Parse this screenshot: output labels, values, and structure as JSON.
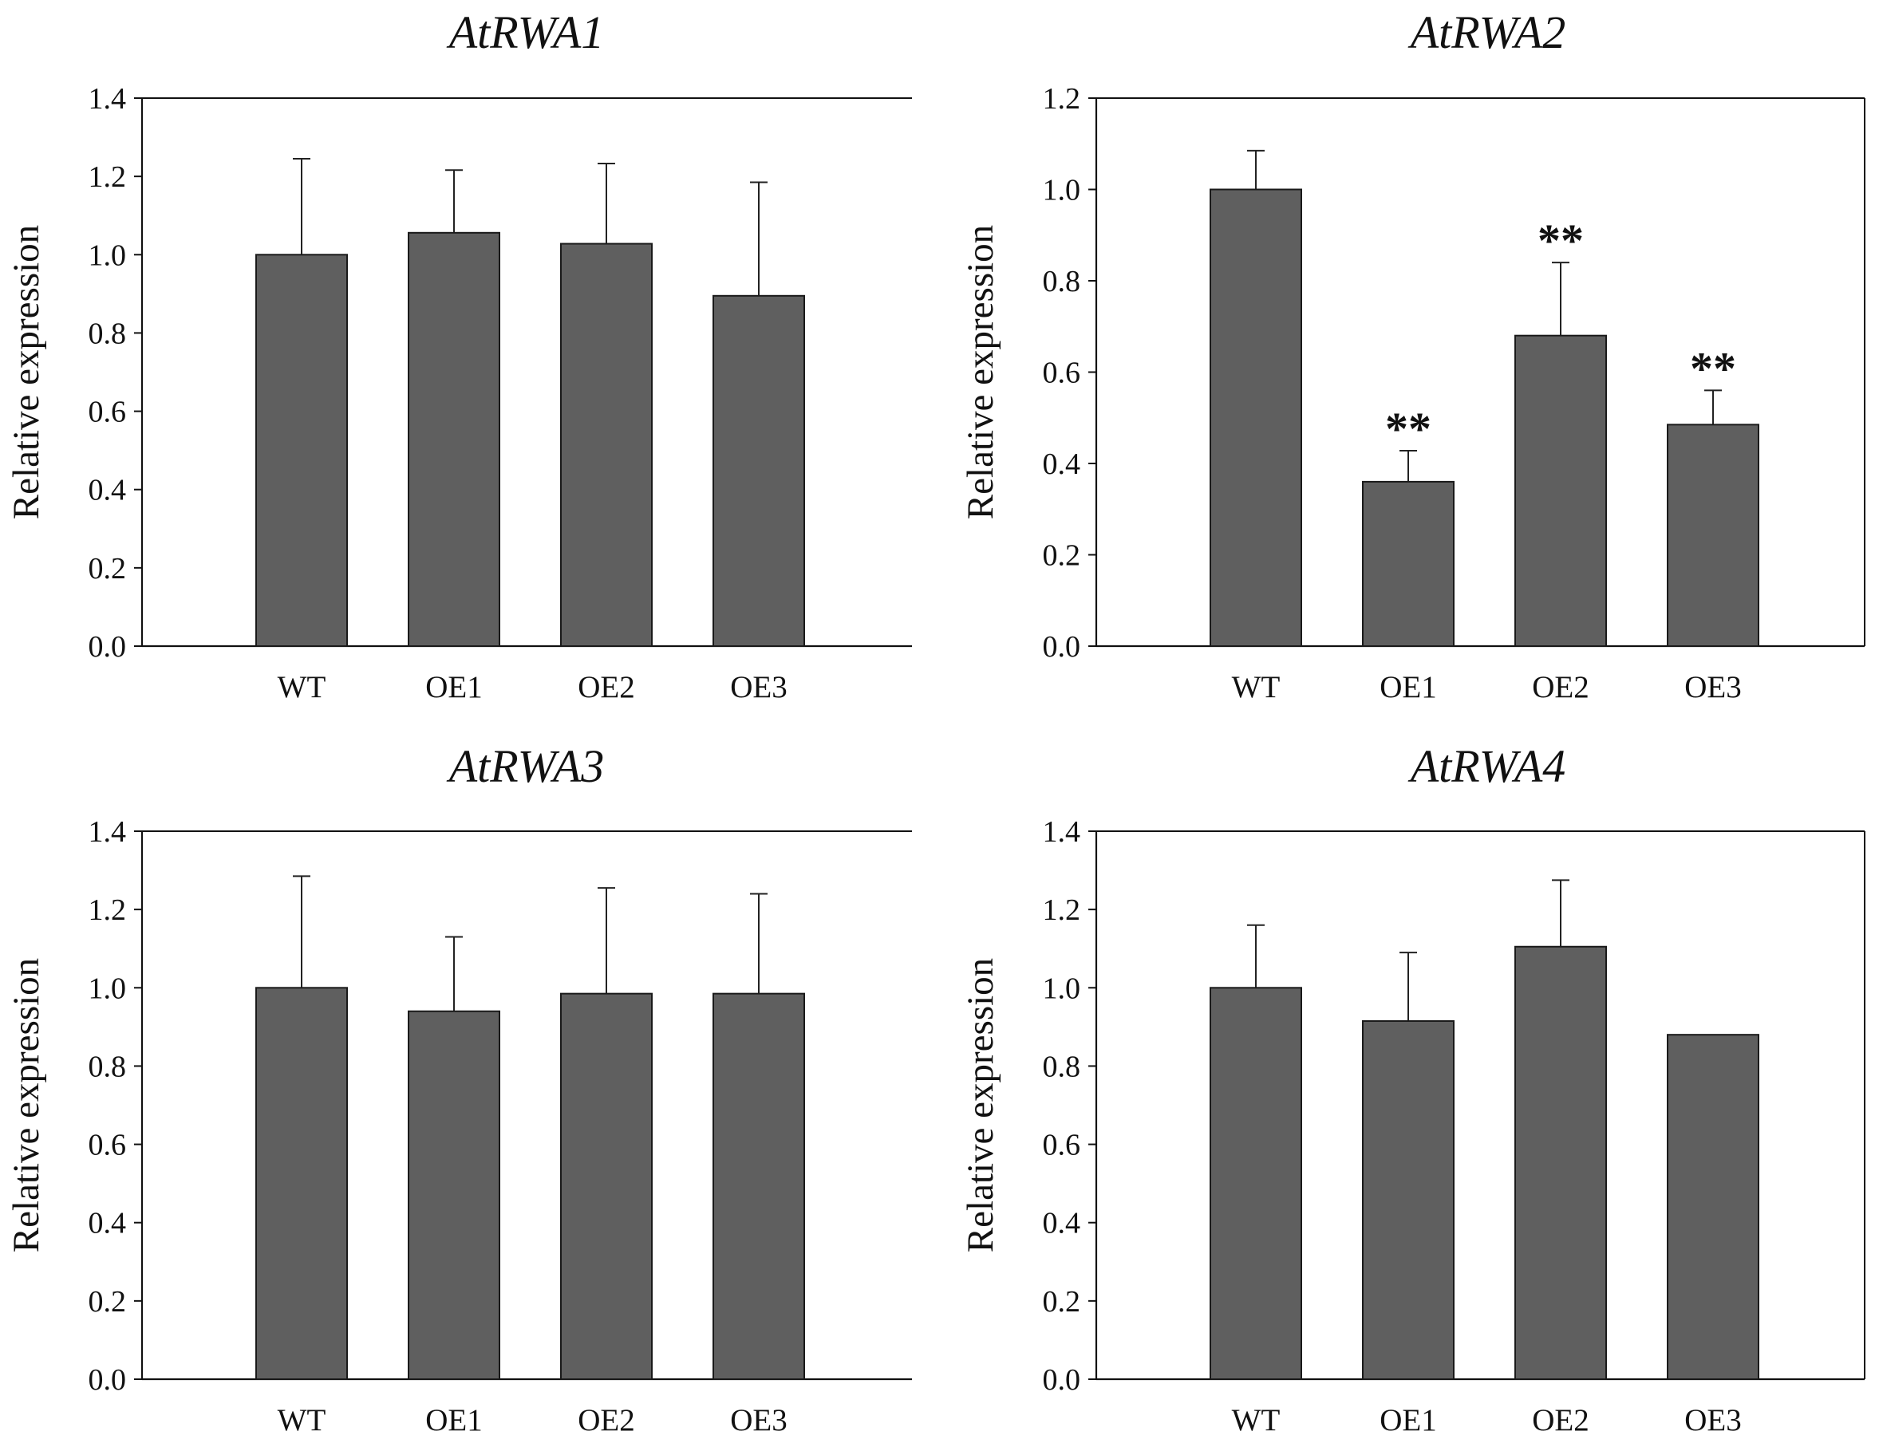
{
  "chart_data": [
    {
      "type": "bar",
      "title": "AtRWA1",
      "ylabel": "Relative expression",
      "xlabel": "",
      "categories": [
        "WT",
        "OE1",
        "OE2",
        "OE3"
      ],
      "values": [
        1.0,
        1.056,
        1.028,
        0.895
      ],
      "errors": [
        0.245,
        0.16,
        0.205,
        0.29
      ],
      "significance": [
        "",
        "",
        "",
        ""
      ],
      "ylim": [
        0,
        1.4
      ],
      "yticks": [
        "0.0",
        "0.2",
        "0.4",
        "0.6",
        "0.8",
        "1.0",
        "1.2",
        "1.4"
      ],
      "bar_color": "#5f5f5f"
    },
    {
      "type": "bar",
      "title": "AtRWA2",
      "ylabel": "Relative expression",
      "xlabel": "",
      "categories": [
        "WT",
        "OE1",
        "OE2",
        "OE3"
      ],
      "values": [
        1.0,
        0.36,
        0.68,
        0.485
      ],
      "errors": [
        0.085,
        0.068,
        0.16,
        0.075
      ],
      "significance": [
        "",
        "**",
        "**",
        "**"
      ],
      "ylim": [
        0,
        1.2
      ],
      "yticks": [
        "0.0",
        "0.2",
        "0.4",
        "0.6",
        "0.8",
        "1.0",
        "1.2"
      ],
      "bar_color": "#5f5f5f"
    },
    {
      "type": "bar",
      "title": "AtRWA3",
      "ylabel": "Relative expression",
      "xlabel": "",
      "categories": [
        "WT",
        "OE1",
        "OE2",
        "OE3"
      ],
      "values": [
        1.0,
        0.94,
        0.985,
        0.985
      ],
      "errors": [
        0.285,
        0.19,
        0.27,
        0.255
      ],
      "significance": [
        "",
        "",
        "",
        ""
      ],
      "ylim": [
        0,
        1.4
      ],
      "yticks": [
        "0.0",
        "0.2",
        "0.4",
        "0.6",
        "0.8",
        "1.0",
        "1.2",
        "1.4"
      ],
      "bar_color": "#5f5f5f"
    },
    {
      "type": "bar",
      "title": "AtRWA4",
      "ylabel": "Relative expression",
      "xlabel": "",
      "categories": [
        "WT",
        "OE1",
        "OE2",
        "OE3"
      ],
      "values": [
        1.0,
        0.915,
        1.105,
        0.88
      ],
      "errors": [
        0.16,
        0.175,
        0.17,
        0.0
      ],
      "significance": [
        "",
        "",
        "",
        ""
      ],
      "ylim": [
        0,
        1.4
      ],
      "yticks": [
        "0.0",
        "0.2",
        "0.4",
        "0.6",
        "0.8",
        "1.0",
        "1.2",
        "1.4"
      ],
      "bar_color": "#5f5f5f"
    }
  ]
}
